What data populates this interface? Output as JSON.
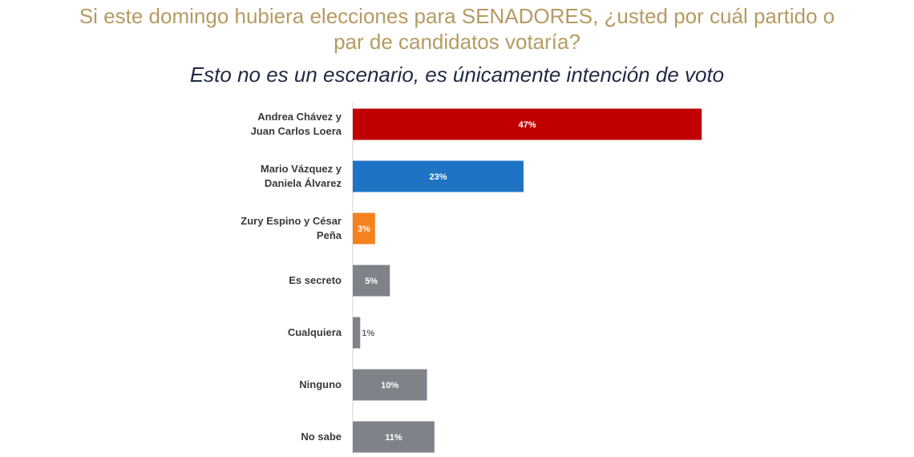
{
  "chart_data": {
    "type": "bar",
    "orientation": "horizontal",
    "title": "Si este domingo hubiera elecciones para SENADORES, ¿usted por cuál partido o par de candidatos votaría?",
    "subtitle": "Esto no es un escenario, es únicamente intención de voto",
    "categories": [
      "Andrea Chávez y Juan Carlos Loera",
      "Mario Vázquez y Daniela Álvarez",
      "Zury Espino y César Peña",
      "Es secreto",
      "Cualquiera",
      "Ninguno",
      "No sabe"
    ],
    "values": [
      47,
      23,
      3,
      5,
      1,
      10,
      11
    ],
    "value_labels": [
      "47%",
      "23%",
      "3%",
      "5%",
      "1%",
      "10%",
      "11%"
    ],
    "colors": [
      "#c00000",
      "#1f73c4",
      "#f5821f",
      "#7f8389",
      "#7f8389",
      "#7f8389",
      "#7f8389"
    ]
  }
}
